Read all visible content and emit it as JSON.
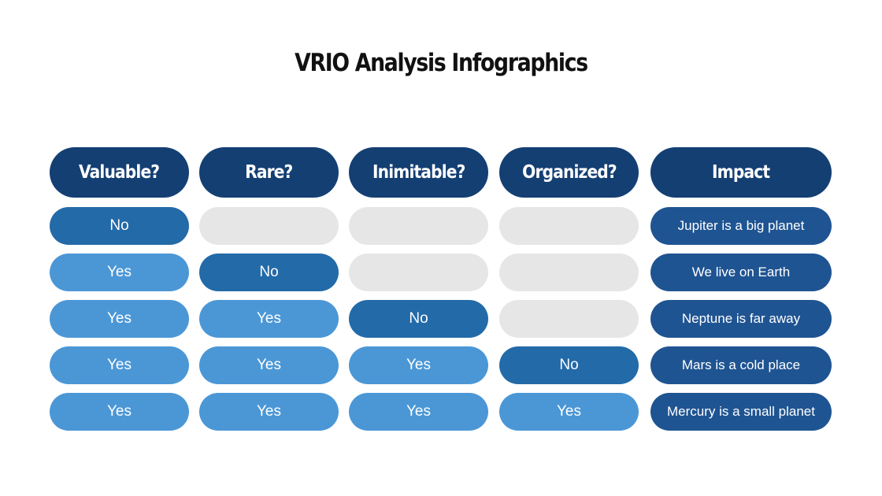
{
  "title": "VRIO Analysis Infographics",
  "colors": {
    "header": "#143f73",
    "no": "#236aa8",
    "yes": "#4b97d6",
    "empty": "#e6e6e6",
    "impact": "#1f5492"
  },
  "headers": [
    "Valuable?",
    "Rare?",
    "Inimitable?",
    "Organized?",
    "Impact"
  ],
  "rows": [
    {
      "cells": [
        "No",
        "",
        "",
        ""
      ],
      "impact": "Jupiter is a big planet"
    },
    {
      "cells": [
        "Yes",
        "No",
        "",
        ""
      ],
      "impact": "We live on Earth"
    },
    {
      "cells": [
        "Yes",
        "Yes",
        "No",
        ""
      ],
      "impact": "Neptune is far away"
    },
    {
      "cells": [
        "Yes",
        "Yes",
        "Yes",
        "No"
      ],
      "impact": "Mars is a cold place"
    },
    {
      "cells": [
        "Yes",
        "Yes",
        "Yes",
        "Yes"
      ],
      "impact": "Mercury is a small planet"
    }
  ]
}
